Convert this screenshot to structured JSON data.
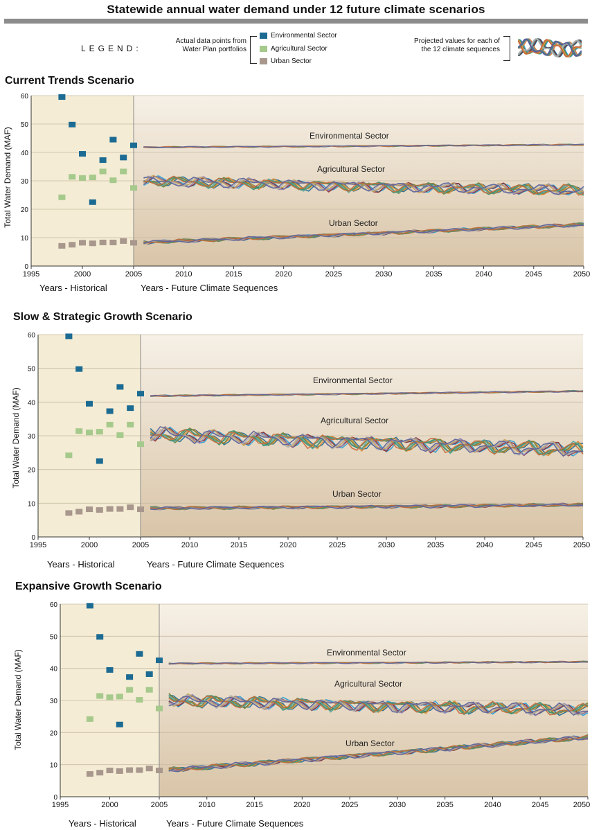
{
  "page": {
    "title": "Statewide annual water demand under 12 future climate scenarios"
  },
  "legend": {
    "word": "LEGEND:",
    "actual_text": [
      "Actual data points from",
      "Water Plan portfolios"
    ],
    "projected_text": [
      "Projected values for each of",
      "the 12 climate sequences"
    ],
    "items": [
      {
        "label": "Environmental Sector",
        "color": "#1c6b93"
      },
      {
        "label": "Agricultural Sector",
        "color": "#a6c98c"
      },
      {
        "label": "Urban Sector",
        "color": "#a8978c"
      }
    ]
  },
  "colors": {
    "environmental": "#1c6b93",
    "agricultural": "#a6c98c",
    "urban": "#a8978c",
    "historical_bg": "#f4ecd4",
    "future_bg_top": "#f6f0e6",
    "future_bg_bottom": "#d9c5a8",
    "projection_lines": [
      "#1c6b93",
      "#2a9fd6",
      "#e08a2c",
      "#8a2a2a",
      "#6c7f3a",
      "#8b7fb5",
      "#5aa4a0",
      "#c7a056",
      "#3f8f6a",
      "#b0b0b0",
      "#c76a3a",
      "#5a5f9a"
    ]
  },
  "chart_data": [
    {
      "type": "scatter",
      "title": "Current Trends Scenario",
      "ylabel": "Total Water  Demand (MAF)",
      "xlabel_historical": "Years - Historical",
      "xlabel_future": "Years - Future Climate Sequences",
      "ylim": [
        0,
        60
      ],
      "yticks": [
        0,
        10,
        20,
        30,
        40,
        50,
        60
      ],
      "historical_xticks": [
        1995,
        2000,
        2005
      ],
      "future_xticks": [
        2010,
        2015,
        2020,
        2025,
        2030,
        2035,
        2040,
        2045,
        2050
      ],
      "historical_years": [
        1998,
        1999,
        2000,
        2001,
        2002,
        2003,
        2004,
        2005
      ],
      "historical": {
        "environmental": [
          59.5,
          49.8,
          39.5,
          22.5,
          37.3,
          44.5,
          38.2,
          42.5
        ],
        "agricultural": [
          24.2,
          31.4,
          31.0,
          31.2,
          33.3,
          30.2,
          33.3,
          27.5
        ],
        "urban": [
          7.1,
          7.5,
          8.2,
          8.0,
          8.3,
          8.3,
          8.8,
          8.2
        ]
      },
      "projected": {
        "environmental": {
          "start": 41.8,
          "end": 42.7,
          "spread": 0.3
        },
        "agricultural": {
          "start": 30.0,
          "end": 26.5,
          "spread": 2.5
        },
        "urban": {
          "start": 8.3,
          "end": 14.5,
          "spread": 0.8
        }
      },
      "sector_labels": {
        "environmental": "Environmental Sector",
        "agricultural": "Agricultural Sector",
        "urban": "Urban Sector"
      }
    },
    {
      "type": "scatter",
      "title": "Slow & Strategic Growth Scenario",
      "ylabel": "Total Water  Demand (MAF)",
      "xlabel_historical": "Years - Historical",
      "xlabel_future": "Years - Future Climate Sequences",
      "ylim": [
        0,
        60
      ],
      "yticks": [
        0,
        10,
        20,
        30,
        40,
        50,
        60
      ],
      "historical_xticks": [
        1995,
        2000,
        2005
      ],
      "future_xticks": [
        2010,
        2015,
        2020,
        2025,
        2030,
        2035,
        2040,
        2045,
        2050
      ],
      "historical_years": [
        1998,
        1999,
        2000,
        2001,
        2002,
        2003,
        2004,
        2005
      ],
      "historical": {
        "environmental": [
          59.5,
          49.8,
          39.5,
          22.5,
          37.3,
          44.5,
          38.2,
          42.5
        ],
        "agricultural": [
          24.2,
          31.4,
          31.0,
          31.2,
          33.3,
          30.2,
          33.3,
          27.5
        ],
        "urban": [
          7.1,
          7.5,
          8.2,
          8.0,
          8.3,
          8.3,
          8.8,
          8.2
        ]
      },
      "projected": {
        "environmental": {
          "start": 41.8,
          "end": 43.2,
          "spread": 0.3
        },
        "agricultural": {
          "start": 30.5,
          "end": 25.8,
          "spread": 2.8
        },
        "urban": {
          "start": 8.5,
          "end": 9.5,
          "spread": 0.6
        }
      },
      "sector_labels": {
        "environmental": "Environmental Sector",
        "agricultural": "Agricultural Sector",
        "urban": "Urban Sector"
      }
    },
    {
      "type": "scatter",
      "title": "Expansive Growth Scenario",
      "ylabel": "Total Water  Demand (MAF)",
      "xlabel_historical": "Years - Historical",
      "xlabel_future": "Years - Future Climate Sequences",
      "ylim": [
        0,
        60
      ],
      "yticks": [
        0,
        10,
        20,
        30,
        40,
        50,
        60
      ],
      "historical_xticks": [
        1995,
        2000,
        2005
      ],
      "future_xticks": [
        2010,
        2015,
        2020,
        2025,
        2030,
        2035,
        2040,
        2045,
        2050
      ],
      "historical_years": [
        1998,
        1999,
        2000,
        2001,
        2002,
        2003,
        2004,
        2005
      ],
      "historical": {
        "environmental": [
          59.5,
          49.8,
          39.5,
          22.5,
          37.3,
          44.5,
          38.2,
          42.5
        ],
        "agricultural": [
          24.2,
          31.4,
          31.0,
          31.2,
          33.3,
          30.2,
          33.3,
          27.5
        ],
        "urban": [
          7.1,
          7.5,
          8.2,
          8.0,
          8.3,
          8.3,
          8.8,
          8.2
        ]
      },
      "projected": {
        "environmental": {
          "start": 41.5,
          "end": 42.0,
          "spread": 0.3
        },
        "agricultural": {
          "start": 30.0,
          "end": 27.0,
          "spread": 2.5
        },
        "urban": {
          "start": 8.3,
          "end": 18.5,
          "spread": 1.0
        }
      },
      "sector_labels": {
        "environmental": "Environmental Sector",
        "agricultural": "Agricultural Sector",
        "urban": "Urban Sector"
      }
    }
  ]
}
